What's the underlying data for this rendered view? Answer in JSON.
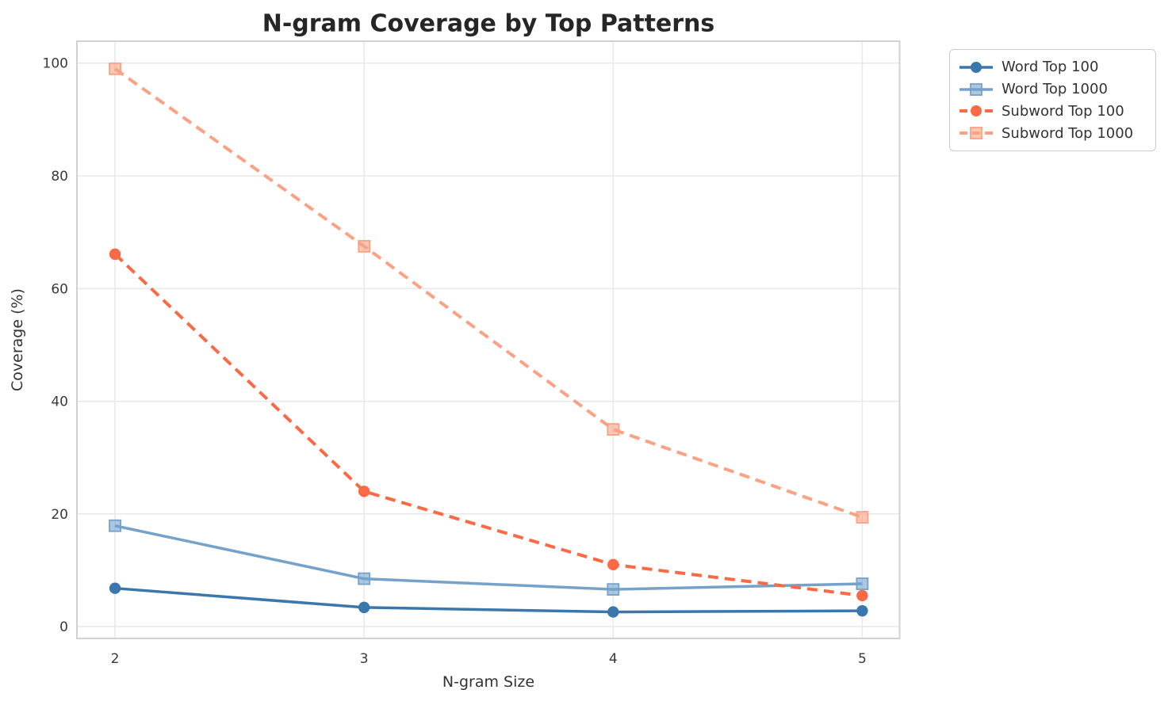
{
  "title": "N-gram Coverage by Top Patterns",
  "chart_data": {
    "type": "line",
    "title": "N-gram Coverage by Top Patterns",
    "xlabel": "N-gram Size",
    "ylabel": "Coverage (%)",
    "x": [
      2,
      3,
      4,
      5
    ],
    "xticks": [
      "2",
      "3",
      "4",
      "5"
    ],
    "yticks": [
      0,
      20,
      40,
      60,
      80,
      100
    ],
    "xlim": [
      1.847,
      5.15
    ],
    "ylim": [
      -2.1,
      103.9
    ],
    "grid": true,
    "legend_position": "outside-upper-right",
    "series": [
      {
        "name": "Word Top 100",
        "color": "#3a77ad",
        "line": "solid",
        "marker": "circle",
        "values": [
          6.8,
          3.4,
          2.6,
          2.8
        ]
      },
      {
        "name": "Word Top 1000",
        "color": "#74a2ca",
        "line": "solid",
        "marker": "square",
        "values": [
          17.9,
          8.5,
          6.6,
          7.6
        ]
      },
      {
        "name": "Subword Top 100",
        "color": "#fb6a44",
        "line": "dashed",
        "marker": "circle",
        "values": [
          66.1,
          24.0,
          11.0,
          5.5
        ]
      },
      {
        "name": "Subword Top 1000",
        "color": "#fca184",
        "line": "dashed",
        "marker": "square",
        "values": [
          99.0,
          67.5,
          35.0,
          19.4
        ]
      }
    ],
    "colors": {
      "background": "#ffffff",
      "grid": "#e9e9e9",
      "spine": "#d2d2d2",
      "title": "#262626",
      "tick": "#3a3a3a",
      "label": "#333333",
      "legend_border": "#cccccc"
    }
  }
}
